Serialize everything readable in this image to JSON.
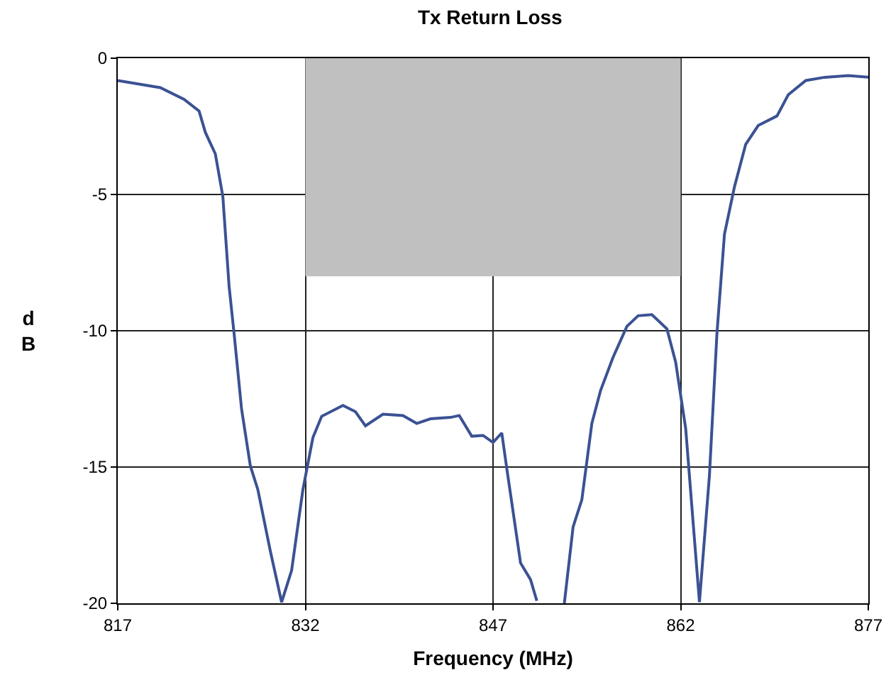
{
  "chart_data": {
    "type": "line",
    "title": "Tx Return Loss",
    "xlabel": "Frequency (MHz)",
    "ylabel": "dB",
    "xlim": [
      817,
      877
    ],
    "xticks": [
      817,
      832,
      847,
      862,
      877
    ],
    "ylim": [
      -20,
      0
    ],
    "yticks": [
      0,
      -5,
      -10,
      -15,
      -20
    ],
    "grid": true,
    "series": [
      {
        "type": "area",
        "color": "#c0c0c0",
        "x": [
          832,
          862
        ],
        "values": [
          -8,
          -8
        ]
      },
      {
        "color": "#3b5293",
        "x": [
          817,
          820.4,
          822.3,
          823.5,
          824.0,
          824.8,
          825.4,
          825.9,
          826.3,
          826.9,
          827.6,
          828.2,
          829.2,
          830.1,
          830.9,
          831.8,
          832.6,
          833.3,
          835.0,
          836.0,
          836.8,
          838.2,
          839.8,
          840.9,
          842.0,
          843.6,
          844.3,
          845.3,
          846.2,
          847.0,
          847.7,
          848.1,
          849.2,
          850.0,
          850.5,
          851.6,
          852.7,
          853.4,
          854.1,
          854.9,
          855.6,
          856.6,
          857.7,
          858.6,
          859.7,
          860.9,
          861.6,
          862.4,
          863.5,
          864.3,
          864.9,
          865.5,
          866.3,
          867.2,
          868.2,
          869.7,
          870.6,
          872.0,
          873.5,
          875.4,
          877
        ],
        "values": [
          -0.82,
          -1.08,
          -1.51,
          -1.94,
          -2.72,
          -3.51,
          -5.07,
          -8.37,
          -10.1,
          -12.88,
          -14.96,
          -15.83,
          -18.09,
          -19.96,
          -18.79,
          -15.83,
          -13.92,
          -13.14,
          -12.74,
          -12.97,
          -13.49,
          -13.06,
          -13.11,
          -13.4,
          -13.23,
          -13.18,
          -13.11,
          -13.87,
          -13.84,
          -14.1,
          -13.75,
          -15.05,
          -18.52,
          -19.13,
          -19.91,
          null,
          -20,
          -17.2,
          -16.2,
          -13.4,
          -12.19,
          -10.97,
          -9.84,
          -9.45,
          -9.41,
          -9.93,
          -11.15,
          -13.58,
          -19.96,
          -15.31,
          -10.1,
          -6.46,
          -4.72,
          -3.16,
          -2.47,
          -2.12,
          -1.34,
          -0.82,
          -0.7,
          -0.64,
          -0.7
        ]
      }
    ]
  }
}
